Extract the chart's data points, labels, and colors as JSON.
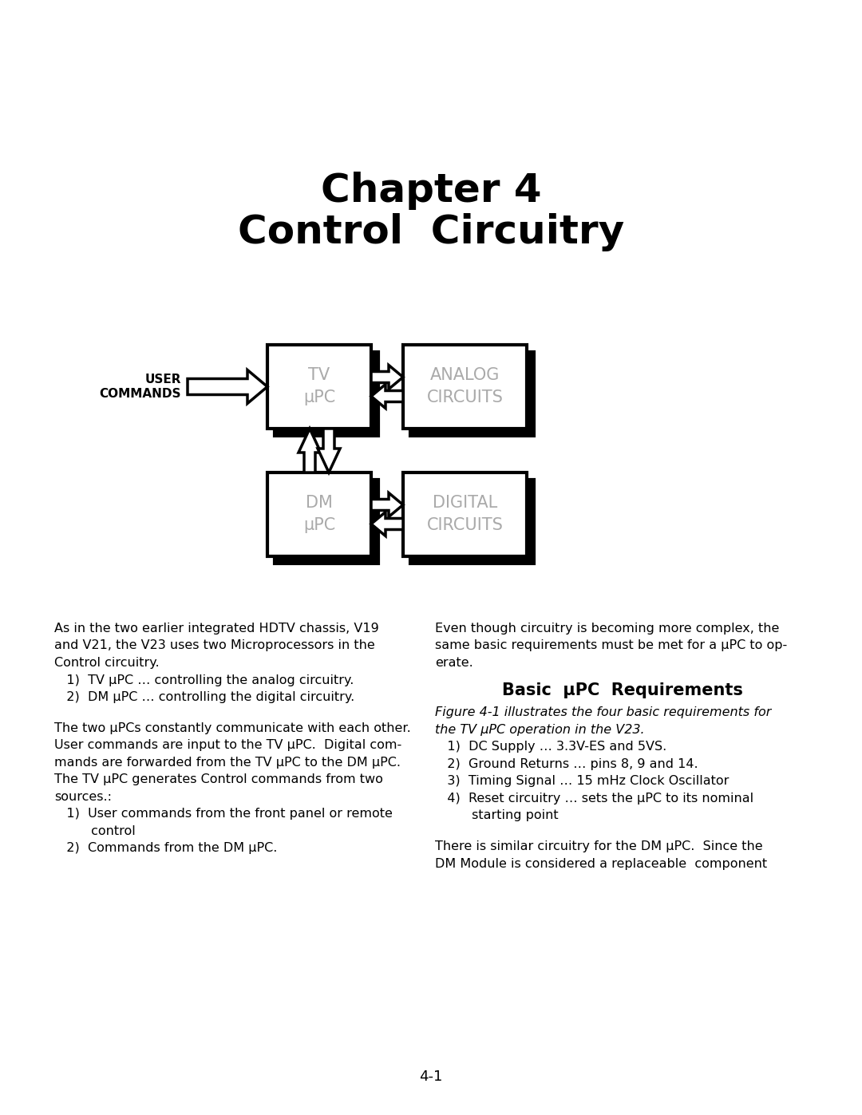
{
  "title_line1": "Chapter 4",
  "title_line2": "Control  Circuitry",
  "bg_color": "#ffffff",
  "text_color": "#000000",
  "diagram": {
    "tv_upc_label": "TV\nμPC",
    "dm_upc_label": "DM\nμPC",
    "analog_label": "ANALOG\nCIRCUITS",
    "digital_label": "DIGITAL\nCIRCUITS",
    "user_label": "USER\nCOMMANDS"
  },
  "left_col_text": [
    "As in the two earlier integrated HDTV chassis, V19",
    "and V21, the V23 uses two Microprocessors in the",
    "Control circuitry.",
    "   1)  TV μPC … controlling the analog circuitry.",
    "   2)  DM μPC … controlling the digital circuitry.",
    "",
    "The two μPCs constantly communicate with each other.",
    "User commands are input to the TV μPC.  Digital com-",
    "mands are forwarded from the TV μPC to the DM μPC.",
    "The TV μPC generates Control commands from two",
    "sources.:",
    "   1)  User commands from the front panel or remote",
    "         control",
    "   2)  Commands from the DM μPC."
  ],
  "right_col_para1": [
    "Even though circuitry is becoming more complex, the",
    "same basic requirements must be met for a μPC to op-",
    "erate."
  ],
  "right_col_heading": "Basic  μPC  Requirements",
  "right_col_text": [
    "Figure 4-1 illustrates the four basic requirements for",
    "the TV μPC operation in the V23.",
    "   1)  DC Supply … 3.3V-ES and 5VS.",
    "   2)  Ground Returns … pins 8, 9 and 14.",
    "   3)  Timing Signal … 15 mHz Clock Oscillator",
    "   4)  Reset circuitry … sets the μPC to its nominal",
    "         starting point",
    "",
    "There is similar circuitry for the DM μPC.  Since the",
    "DM Module is considered a replaceable  component"
  ],
  "page_number": "4-1"
}
